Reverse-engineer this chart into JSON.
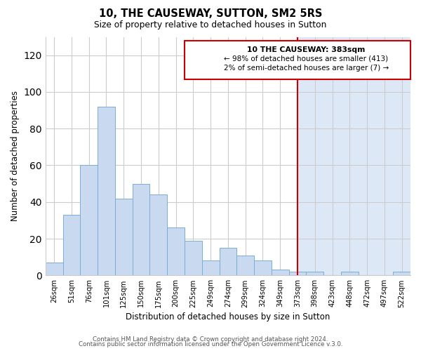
{
  "title": "10, THE CAUSEWAY, SUTTON, SM2 5RS",
  "subtitle": "Size of property relative to detached houses in Sutton",
  "xlabel": "Distribution of detached houses by size in Sutton",
  "ylabel": "Number of detached properties",
  "bar_labels": [
    "26sqm",
    "51sqm",
    "76sqm",
    "101sqm",
    "125sqm",
    "150sqm",
    "175sqm",
    "200sqm",
    "225sqm",
    "249sqm",
    "274sqm",
    "299sqm",
    "324sqm",
    "349sqm",
    "373sqm",
    "398sqm",
    "423sqm",
    "448sqm",
    "472sqm",
    "497sqm",
    "522sqm"
  ],
  "bar_values": [
    7,
    33,
    60,
    92,
    42,
    50,
    44,
    26,
    19,
    8,
    15,
    11,
    8,
    3,
    2,
    2,
    0,
    2,
    0,
    0,
    2
  ],
  "bar_color": "#c8d9f0",
  "bar_edge_color": "#7aadd4",
  "vline_x_index": 14,
  "vline_color": "#cc0000",
  "highlight_color": "#dde8f7",
  "ylim": [
    0,
    130
  ],
  "yticks": [
    0,
    20,
    40,
    60,
    80,
    100,
    120
  ],
  "annotation_title": "10 THE CAUSEWAY: 383sqm",
  "annotation_line1": "← 98% of detached houses are smaller (413)",
  "annotation_line2": "2% of semi-detached houses are larger (7) →",
  "annotation_box_color": "#ffffff",
  "annotation_box_edge": "#cc0000",
  "footer1": "Contains HM Land Registry data © Crown copyright and database right 2024.",
  "footer2": "Contains public sector information licensed under the Open Government Licence v.3.0.",
  "grid_color": "#cccccc",
  "background_color": "#ffffff"
}
